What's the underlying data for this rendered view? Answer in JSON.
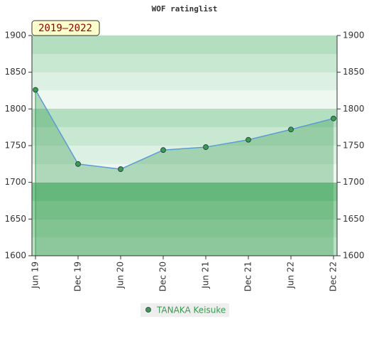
{
  "chart_data": {
    "type": "line",
    "title": "WOF ratinglist",
    "annotation": "2019–2022",
    "categories": [
      "Jun 19",
      "Dec 19",
      "Jun 20",
      "Dec 20",
      "Jun 21",
      "Dec 21",
      "Jun 22",
      "Dec 22"
    ],
    "series": [
      {
        "name": "TANAKA Keisuke",
        "color": "#3a9a50",
        "line_color": "#5b9bd5",
        "values": [
          1826,
          1725,
          1718,
          1744,
          1748,
          1758,
          1772,
          1787
        ]
      }
    ],
    "ylim": [
      1600,
      1900
    ],
    "yticks": [
      1600,
      1650,
      1700,
      1750,
      1800,
      1850,
      1900
    ],
    "y2lim": [
      1600,
      1900
    ],
    "y2ticks": [
      1600,
      1650,
      1700,
      1750,
      1800,
      1850,
      1900
    ],
    "legend": "bottom"
  }
}
